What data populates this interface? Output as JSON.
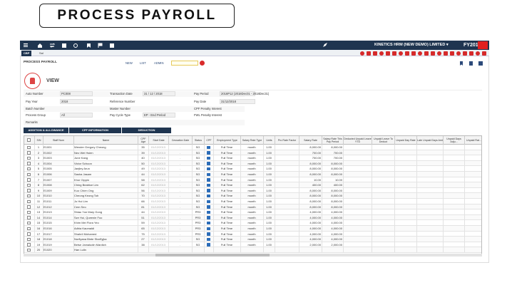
{
  "header": {
    "title": "PROCESS PAYROLL"
  },
  "navbar": {
    "company": "KINETICS HRM (NEW DEMO) LIMITED ▾",
    "fiscal_year": "FY2018 ▾"
  },
  "tabs": [
    "CBP",
    "Sal"
  ],
  "toolbar": {
    "title": "PROCESS PAYROLL",
    "actions": [
      "NEW",
      "LIST",
      "ADMIN"
    ]
  },
  "section": {
    "title": "VIEW"
  },
  "form": {
    "rows": [
      [
        {
          "label": "Auto Number",
          "value": "PC008"
        },
        {
          "label": "Transaction Date",
          "value": "31   /   12   /   2018"
        },
        {
          "label": "Pay Period",
          "value": "2018P12 (2018Dec01 - 2018Dec31)"
        }
      ],
      [
        {
          "label": "Pay Year",
          "value": "2018"
        },
        {
          "label": "Reference Number"
        },
        {
          "label": "Pay Date",
          "value": "31/12/2018"
        }
      ],
      [
        {
          "label": "Batch Number"
        },
        {
          "label": "Master Number"
        },
        {
          "label": "CPF Penalty Interest"
        }
      ],
      [
        {
          "label": "Process Group",
          "value": "All"
        },
        {
          "label": "Pay Cycle Type",
          "value": "EP - End Period"
        },
        {
          "label": "FWL Penalty Interest"
        }
      ],
      [
        {
          "label": "Remarks"
        }
      ]
    ]
  },
  "table_tabs": [
    "ADDITION & ALLOWANCE",
    "CPF INFORMATION",
    "DEDUCTION"
  ],
  "table": {
    "columns": [
      "S/N",
      "Staff Num",
      "Name",
      "CPF Age",
      "Start Date",
      "Cessation Date",
      "Status",
      "CPF",
      "Employment Type",
      "Salary Rate Type",
      "Units",
      "Pro Rate Factor",
      "Salary Rate",
      "Salary Rate This Pay Period",
      "Deducted Unpaid Leave YTD",
      "Unpaid Leave To Deduct",
      "Unpaid Day Rate",
      "Late Unpaid Days Amt",
      "Unpaid Days Adju...",
      "Unpaid Rat..."
    ],
    "rows": [
      [
        1,
        "E1001",
        "Wender Gregory Cheong",
        35,
        "01/12/2013",
        "-",
        "SG",
        "Full Time",
        "month",
        "1.00",
        "8,000.00",
        "8,000.00"
      ],
      [
        2,
        "E1002",
        "Neo Wei Hsien",
        39,
        "01/12/2013",
        "-",
        "SG",
        "Full Time",
        "month",
        "1.00",
        "700.00",
        "700.00"
      ],
      [
        3,
        "E1003",
        "June Kang",
        40,
        "01/12/2013",
        "-",
        "SG",
        "Full Time",
        "month",
        "1.00",
        "700.00",
        "700.00"
      ],
      [
        4,
        "E1004",
        "Victor Schoon",
        50,
        "01/12/2013",
        "-",
        "SG",
        "Full Time",
        "month",
        "1.00",
        "8,000.00",
        "8,000.00"
      ],
      [
        5,
        "E1005",
        "Jaejley Arun",
        49,
        "01/12/2013",
        "-",
        "SG",
        "Full Time",
        "month",
        "1.00",
        "8,000.00",
        "8,000.00"
      ],
      [
        6,
        "E1006",
        "Sasha Jasam",
        44,
        "01/12/2013",
        "-",
        "SG",
        "Full Time",
        "month",
        "1.00",
        "8,000.00",
        "8,000.00"
      ],
      [
        7,
        "E1007",
        "Khor Gippin",
        58,
        "01/12/2013",
        "-",
        "SG",
        "Full Time",
        "month",
        "1.00",
        "10.00",
        "10.00"
      ],
      [
        8,
        "E1008",
        "Ching Beatrice Lim",
        62,
        "01/12/2013",
        "-",
        "SG",
        "Full Time",
        "month",
        "1.00",
        "400.00",
        "400.00"
      ],
      [
        9,
        "E1009",
        "Kuo Chien Ong",
        56,
        "01/12/2013",
        "-",
        "SG",
        "Full Time",
        "month",
        "1.00",
        "8,000.00",
        "8,000.00"
      ],
      [
        10,
        "E1010",
        "Cheong Keong Toh",
        70,
        "01/12/2013",
        "-",
        "SG",
        "Full Time",
        "month",
        "1.00",
        "8,000.00",
        "8,000.00"
      ],
      [
        11,
        "E1011",
        "Jo Hui Lim",
        66,
        "01/12/2013",
        "-",
        "SG",
        "Full Time",
        "month",
        "1.00",
        "8,000.00",
        "8,000.00"
      ],
      [
        12,
        "E1012",
        "Cem Seo",
        81,
        "01/12/2013",
        "-",
        "SG",
        "Full Time",
        "month",
        "1.00",
        "8,000.00",
        "8,000.00"
      ],
      [
        13,
        "E1013",
        "Shiau Yun Mary Gong",
        44,
        "01/12/2013",
        "-",
        "PR3",
        "Full Time",
        "month",
        "1.00",
        "4,000.00",
        "4,000.00"
      ],
      [
        14,
        "E1014",
        "Sze Hui, Queenie Foo",
        51,
        "01/12/2013",
        "-",
        "PR3",
        "Full Time",
        "month",
        "1.00",
        "4,000.00",
        "4,000.00"
      ],
      [
        15,
        "E1015",
        "Khim Mei Flora Yeo",
        59,
        "01/12/2013",
        "-",
        "PR3",
        "Full Time",
        "month",
        "1.00",
        "4,000.00",
        "4,000.00"
      ],
      [
        16,
        "E1016",
        "Adhia Kaumaldi",
        65,
        "01/12/2013",
        "-",
        "PR3",
        "Full Time",
        "month",
        "1.00",
        "4,000.00",
        "4,000.00"
      ],
      [
        17,
        "E1017",
        "Shahril Mohamed",
        75,
        "01/12/2013",
        "-",
        "PR3",
        "Full Time",
        "month",
        "1.00",
        "4,000.00",
        "4,000.00"
      ],
      [
        18,
        "E1018",
        "Nurfiyana Binte Shafi'yjka",
        27,
        "01/12/2013",
        "-",
        "SG",
        "Full Time",
        "month",
        "1.00",
        "4,000.00",
        "4,000.00"
      ],
      [
        19,
        "E1019",
        "Betse Jamaludin Mardich",
        38,
        "01/12/2013",
        "-",
        "SG",
        "Full Time",
        "month",
        "1.00",
        "2,000.00",
        "2,000.00"
      ],
      [
        20,
        "E1020",
        "Han Lulin"
      ]
    ]
  }
}
